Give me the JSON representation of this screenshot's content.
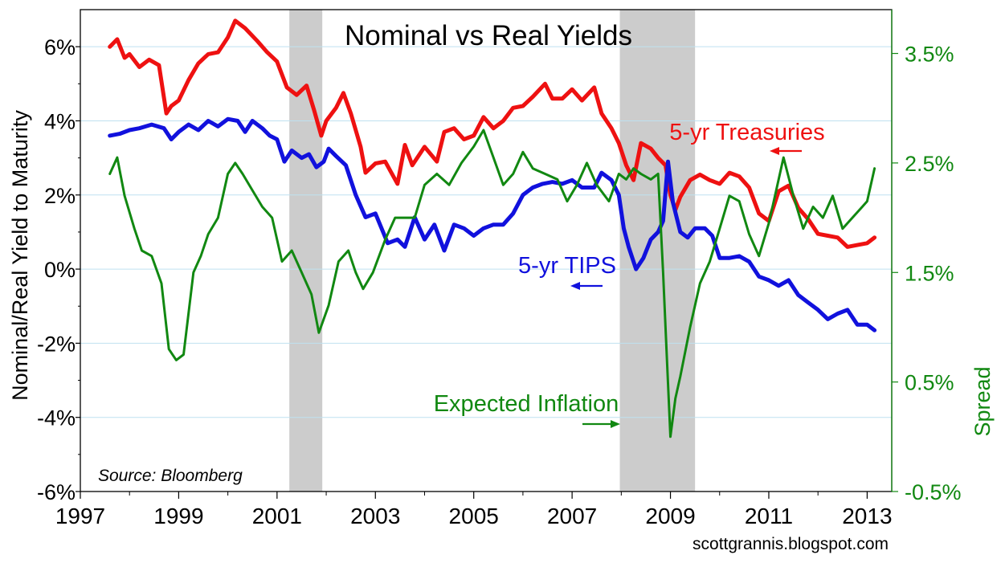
{
  "source_note": "Source: Bloomberg",
  "credit": "scottgrannis.blogspot.com",
  "chart_data": {
    "type": "line",
    "title": "Nominal vs Real Yields",
    "xlabel": "",
    "ylabel": "Nominal/Real Yield to Maturity",
    "y2label": "Spread",
    "xlim": [
      1997,
      2013.5
    ],
    "ylim": [
      -6,
      7
    ],
    "y2lim": [
      -0.5,
      3.9
    ],
    "x_ticks": [
      1997,
      1999,
      2001,
      2003,
      2005,
      2007,
      2009,
      2011,
      2013
    ],
    "x_tick_labels": [
      "1997",
      "1999",
      "2001",
      "2003",
      "2005",
      "2007",
      "2009",
      "2011",
      "2013"
    ],
    "y_ticks": [
      -6,
      -4,
      -2,
      0,
      2,
      4,
      6
    ],
    "y_tick_labels": [
      "-6%",
      "-4%",
      "-2%",
      "0%",
      "2%",
      "4%",
      "6%"
    ],
    "y2_ticks": [
      -0.5,
      0.5,
      1.5,
      2.5,
      3.5
    ],
    "y2_tick_labels": [
      "-0.5%",
      "0.5%",
      "1.5%",
      "2.5%",
      "3.5%"
    ],
    "grid": {
      "horizontal": true,
      "vertical": false
    },
    "recessions": [
      [
        2001.25,
        2001.92
      ],
      [
        2007.97,
        2009.5
      ]
    ],
    "colors": {
      "treasuries": "#ee1111",
      "tips": "#1111dd",
      "inflation": "#118811",
      "recession": "#cccccc",
      "grid": "#bfe1f0"
    },
    "series": [
      {
        "name": "5-yr Treasuries",
        "label": "5-yr Treasuries",
        "axis": "left",
        "x": [
          1997.6,
          1997.75,
          1997.9,
          1998.0,
          1998.2,
          1998.4,
          1998.6,
          1998.75,
          1998.85,
          1999.0,
          1999.2,
          1999.4,
          1999.6,
          1999.8,
          2000.0,
          2000.15,
          2000.35,
          2000.6,
          2000.8,
          2001.0,
          2001.2,
          2001.4,
          2001.6,
          2001.75,
          2001.9,
          2002.0,
          2002.2,
          2002.35,
          2002.5,
          2002.7,
          2002.8,
          2003.0,
          2003.2,
          2003.45,
          2003.6,
          2003.75,
          2004.0,
          2004.25,
          2004.4,
          2004.6,
          2004.8,
          2005.0,
          2005.2,
          2005.4,
          2005.6,
          2005.8,
          2006.0,
          2006.2,
          2006.45,
          2006.6,
          2006.8,
          2007.0,
          2007.2,
          2007.45,
          2007.6,
          2007.8,
          2007.95,
          2008.1,
          2008.25,
          2008.4,
          2008.6,
          2008.75,
          2008.9,
          2009.0,
          2009.1,
          2009.2,
          2009.4,
          2009.6,
          2009.8,
          2010.0,
          2010.2,
          2010.4,
          2010.6,
          2010.8,
          2011.0,
          2011.2,
          2011.4,
          2011.6,
          2011.8,
          2012.0,
          2012.2,
          2012.4,
          2012.6,
          2012.8,
          2013.0,
          2013.15
        ],
        "y": [
          6.0,
          6.2,
          5.7,
          5.8,
          5.45,
          5.65,
          5.5,
          4.2,
          4.4,
          4.55,
          5.1,
          5.55,
          5.8,
          5.85,
          6.25,
          6.7,
          6.5,
          6.15,
          5.85,
          5.6,
          4.9,
          4.7,
          4.95,
          4.3,
          3.6,
          4.0,
          4.35,
          4.75,
          4.2,
          3.3,
          2.6,
          2.85,
          2.9,
          2.3,
          3.35,
          2.8,
          3.3,
          2.9,
          3.7,
          3.8,
          3.5,
          3.6,
          4.1,
          3.8,
          4.0,
          4.35,
          4.4,
          4.65,
          5.0,
          4.6,
          4.6,
          4.85,
          4.55,
          4.9,
          4.2,
          3.8,
          3.4,
          2.8,
          2.4,
          3.4,
          3.25,
          3.0,
          2.8,
          2.0,
          1.6,
          1.95,
          2.4,
          2.55,
          2.4,
          2.3,
          2.6,
          2.5,
          2.2,
          1.5,
          1.3,
          2.1,
          2.25,
          1.65,
          1.35,
          0.95,
          0.9,
          0.85,
          0.6,
          0.65,
          0.7,
          0.85
        ]
      },
      {
        "name": "5-yr TIPS",
        "label": "5-yr TIPS",
        "axis": "left",
        "x": [
          1997.6,
          1997.8,
          1998.0,
          1998.2,
          1998.45,
          1998.7,
          1998.85,
          1999.0,
          1999.2,
          1999.4,
          1999.6,
          1999.8,
          2000.0,
          2000.2,
          2000.35,
          2000.5,
          2000.7,
          2000.85,
          2001.0,
          2001.15,
          2001.3,
          2001.5,
          2001.65,
          2001.8,
          2001.95,
          2002.05,
          2002.2,
          2002.4,
          2002.6,
          2002.8,
          2003.0,
          2003.25,
          2003.45,
          2003.6,
          2003.8,
          2004.0,
          2004.2,
          2004.4,
          2004.6,
          2004.8,
          2005.0,
          2005.2,
          2005.4,
          2005.6,
          2005.8,
          2006.0,
          2006.2,
          2006.4,
          2006.6,
          2006.8,
          2007.0,
          2007.2,
          2007.45,
          2007.6,
          2007.8,
          2007.95,
          2008.05,
          2008.15,
          2008.3,
          2008.45,
          2008.6,
          2008.75,
          2008.85,
          2008.95,
          2009.05,
          2009.2,
          2009.35,
          2009.5,
          2009.7,
          2009.85,
          2010.0,
          2010.2,
          2010.4,
          2010.6,
          2010.8,
          2011.0,
          2011.2,
          2011.4,
          2011.6,
          2011.8,
          2012.0,
          2012.2,
          2012.4,
          2012.6,
          2012.8,
          2013.0,
          2013.15
        ],
        "y": [
          3.6,
          3.65,
          3.75,
          3.8,
          3.9,
          3.8,
          3.5,
          3.7,
          3.9,
          3.75,
          4.0,
          3.85,
          4.05,
          4.0,
          3.7,
          4.0,
          3.8,
          3.6,
          3.5,
          2.9,
          3.2,
          3.0,
          3.1,
          2.75,
          2.9,
          3.25,
          3.05,
          2.8,
          2.0,
          1.4,
          1.5,
          0.7,
          0.8,
          0.6,
          1.4,
          0.8,
          1.2,
          0.5,
          1.2,
          1.1,
          0.9,
          1.1,
          1.2,
          1.2,
          1.5,
          2.0,
          2.2,
          2.3,
          2.35,
          2.3,
          2.4,
          2.2,
          2.2,
          2.6,
          2.4,
          2.0,
          1.1,
          0.6,
          0.0,
          0.3,
          0.8,
          1.0,
          1.3,
          2.9,
          1.8,
          1.0,
          0.85,
          1.1,
          1.1,
          0.9,
          0.3,
          0.3,
          0.35,
          0.2,
          -0.2,
          -0.3,
          -0.45,
          -0.3,
          -0.7,
          -0.9,
          -1.1,
          -1.35,
          -1.2,
          -1.1,
          -1.5,
          -1.5,
          -1.65
        ]
      },
      {
        "name": "Expected Inflation",
        "label": "Expected Inflation",
        "axis": "right",
        "x": [
          1997.6,
          1997.75,
          1997.9,
          1998.1,
          1998.25,
          1998.45,
          1998.65,
          1998.8,
          1998.95,
          1999.1,
          1999.3,
          1999.45,
          1999.6,
          1999.8,
          2000.0,
          2000.15,
          2000.3,
          2000.5,
          2000.7,
          2000.9,
          2001.1,
          2001.3,
          2001.5,
          2001.7,
          2001.85,
          2002.05,
          2002.25,
          2002.45,
          2002.6,
          2002.75,
          2002.95,
          2003.2,
          2003.4,
          2003.6,
          2003.8,
          2004.0,
          2004.25,
          2004.5,
          2004.75,
          2005.0,
          2005.2,
          2005.4,
          2005.6,
          2005.8,
          2006.0,
          2006.2,
          2006.45,
          2006.7,
          2006.9,
          2007.1,
          2007.3,
          2007.5,
          2007.75,
          2007.95,
          2008.1,
          2008.25,
          2008.4,
          2008.6,
          2008.75,
          2008.85,
          2008.92,
          2009.0,
          2009.1,
          2009.2,
          2009.4,
          2009.6,
          2009.8,
          2010.0,
          2010.2,
          2010.4,
          2010.6,
          2010.8,
          2011.0,
          2011.15,
          2011.3,
          2011.5,
          2011.7,
          2011.9,
          2012.1,
          2012.3,
          2012.5,
          2012.7,
          2012.9,
          2013.0,
          2013.15
        ],
        "y": [
          2.4,
          2.55,
          2.2,
          1.9,
          1.7,
          1.65,
          1.4,
          0.8,
          0.7,
          0.75,
          1.5,
          1.65,
          1.85,
          2.0,
          2.4,
          2.5,
          2.4,
          2.25,
          2.1,
          2.0,
          1.6,
          1.7,
          1.5,
          1.3,
          0.95,
          1.2,
          1.6,
          1.7,
          1.5,
          1.35,
          1.5,
          1.8,
          2.0,
          2.0,
          2.0,
          2.3,
          2.4,
          2.3,
          2.5,
          2.65,
          2.8,
          2.55,
          2.3,
          2.4,
          2.6,
          2.45,
          2.4,
          2.35,
          2.15,
          2.3,
          2.5,
          2.3,
          2.15,
          2.4,
          2.35,
          2.45,
          2.4,
          2.35,
          2.4,
          1.5,
          0.8,
          0.0,
          0.35,
          0.55,
          1.0,
          1.4,
          1.6,
          1.9,
          2.2,
          2.15,
          1.85,
          1.65,
          1.95,
          2.25,
          2.55,
          2.2,
          1.9,
          2.1,
          2.0,
          2.2,
          1.9,
          2.0,
          2.1,
          2.15,
          2.45
        ]
      }
    ]
  }
}
